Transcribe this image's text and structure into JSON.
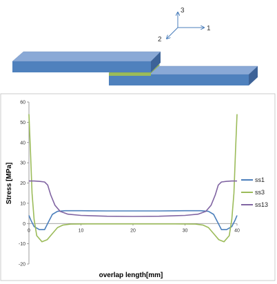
{
  "coordinate_axes": {
    "axis_1": "1",
    "axis_2": "2",
    "axis_3": "3"
  },
  "chart_data": {
    "type": "line",
    "xlabel": "overlap length[mm]",
    "ylabel": "Stress [MPa]",
    "xlim": [
      0,
      40
    ],
    "ylim": [
      -20,
      60
    ],
    "xticks": [
      0,
      10,
      20,
      30,
      40
    ],
    "yticks": [
      -20,
      -10,
      0,
      10,
      20,
      30,
      40,
      50,
      60
    ],
    "grid": false,
    "legend_position": "right",
    "series": [
      {
        "name": "ss1",
        "color": "#4a7ebb",
        "points": [
          [
            0,
            4
          ],
          [
            0.4,
            1.5
          ],
          [
            1,
            -1.5
          ],
          [
            2,
            -3
          ],
          [
            3,
            -3
          ],
          [
            3.8,
            1
          ],
          [
            4.5,
            4.5
          ],
          [
            5.5,
            6
          ],
          [
            7,
            6.3
          ],
          [
            10,
            6.3
          ],
          [
            15,
            6.2
          ],
          [
            20,
            6.2
          ],
          [
            25,
            6.2
          ],
          [
            30,
            6.3
          ],
          [
            33,
            6.3
          ],
          [
            34.5,
            6
          ],
          [
            35.5,
            4.5
          ],
          [
            36.2,
            1
          ],
          [
            37,
            -3
          ],
          [
            38,
            -3
          ],
          [
            39,
            -1.5
          ],
          [
            39.6,
            1.5
          ],
          [
            40,
            4
          ]
        ]
      },
      {
        "name": "ss3",
        "color": "#9bbb59",
        "points": [
          [
            0,
            54
          ],
          [
            0.3,
            35
          ],
          [
            0.6,
            15
          ],
          [
            1,
            2
          ],
          [
            1.5,
            -6
          ],
          [
            2.5,
            -9
          ],
          [
            3.5,
            -8
          ],
          [
            4.5,
            -5
          ],
          [
            5.5,
            -2
          ],
          [
            6.5,
            -0.8
          ],
          [
            8,
            -0.3
          ],
          [
            12,
            -0.2
          ],
          [
            20,
            -0.2
          ],
          [
            28,
            -0.2
          ],
          [
            32,
            -0.3
          ],
          [
            33.5,
            -0.8
          ],
          [
            34.5,
            -2
          ],
          [
            35.5,
            -5
          ],
          [
            36.5,
            -8
          ],
          [
            37.5,
            -9
          ],
          [
            38.5,
            -6
          ],
          [
            39,
            2
          ],
          [
            39.4,
            15
          ],
          [
            39.7,
            35
          ],
          [
            40,
            54
          ]
        ]
      },
      {
        "name": "ss13",
        "color": "#8064a2",
        "points": [
          [
            0,
            21
          ],
          [
            1,
            21
          ],
          [
            2,
            20.8
          ],
          [
            3,
            20.5
          ],
          [
            3.6,
            19
          ],
          [
            4.2,
            14
          ],
          [
            5,
            9
          ],
          [
            6,
            6
          ],
          [
            7.5,
            4.6
          ],
          [
            10,
            4
          ],
          [
            15,
            3.6
          ],
          [
            20,
            3.5
          ],
          [
            25,
            3.6
          ],
          [
            30,
            4
          ],
          [
            32.5,
            4.6
          ],
          [
            34,
            6
          ],
          [
            35,
            9
          ],
          [
            35.8,
            14
          ],
          [
            36.4,
            19
          ],
          [
            37,
            20.5
          ],
          [
            38,
            20.8
          ],
          [
            39,
            21
          ],
          [
            40,
            21
          ]
        ]
      }
    ]
  }
}
